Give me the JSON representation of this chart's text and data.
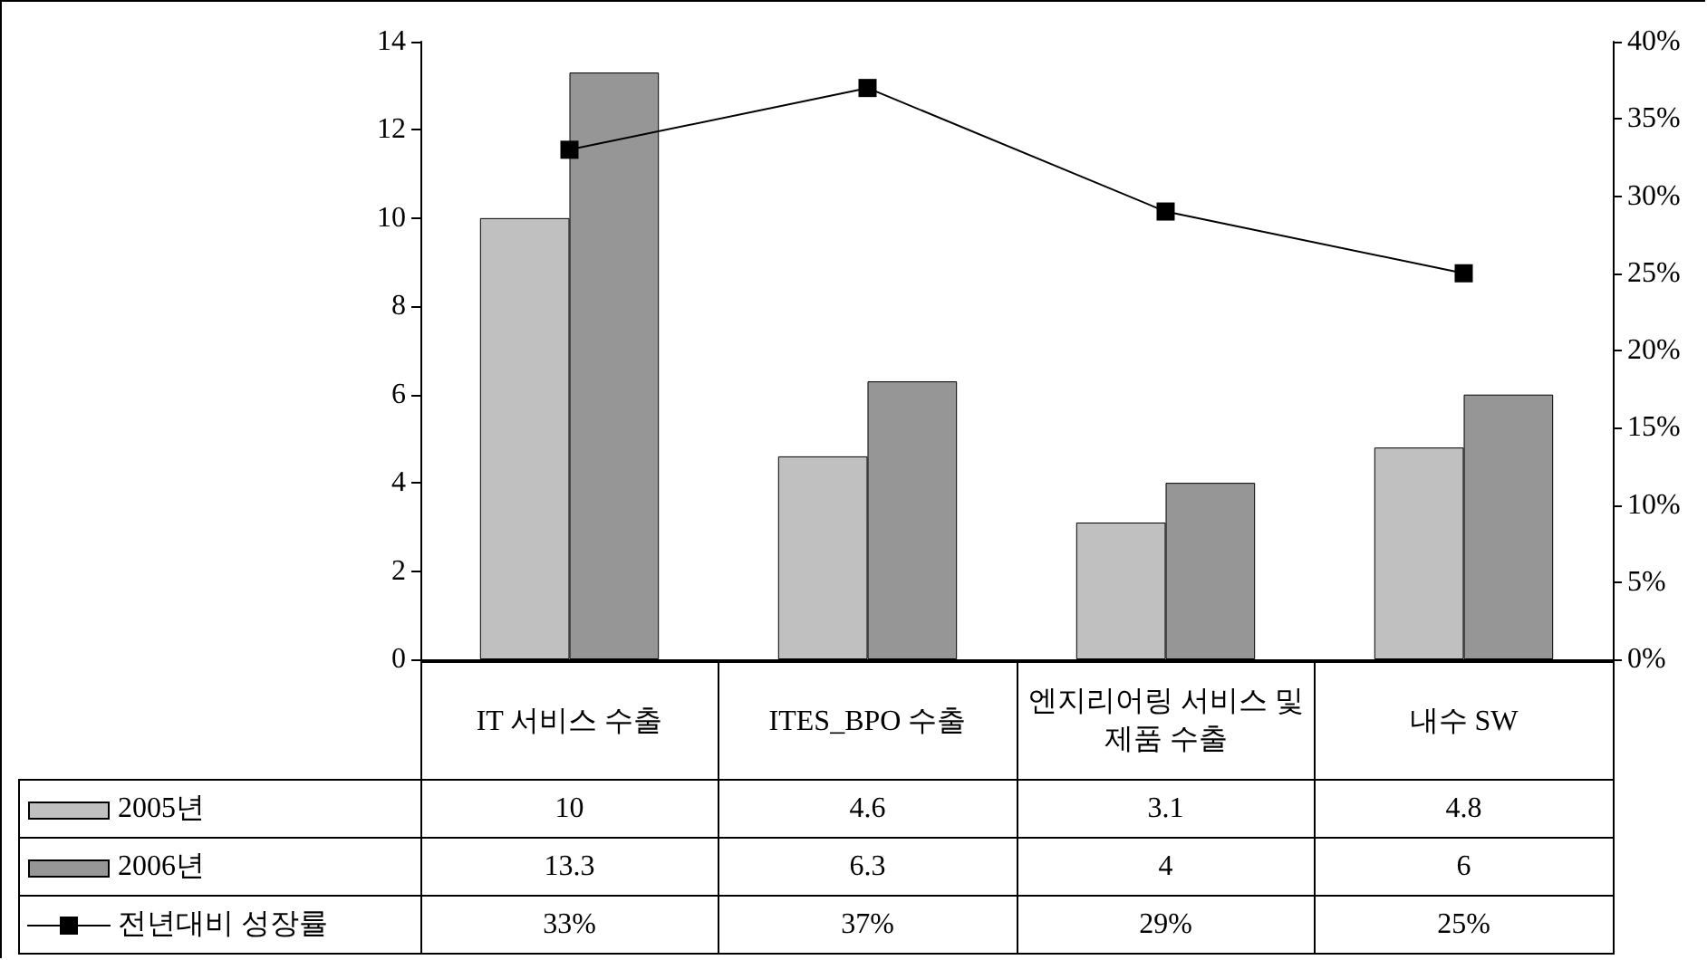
{
  "chart_data": {
    "type": "bar",
    "categories": [
      "IT 서비스 수출",
      "ITES_BPO 수출",
      "엔지리어링 서비스 및 제품 수출",
      "내수 SW"
    ],
    "series": [
      {
        "name": "2005년",
        "color": "#c0c0c0",
        "values": [
          10,
          4.6,
          3.1,
          4.8
        ]
      },
      {
        "name": "2006년",
        "color": "#969696",
        "values": [
          13.3,
          6.3,
          4,
          6
        ]
      },
      {
        "name": "전년대비 성장률",
        "type": "line",
        "axis": "y2",
        "color": "#000000",
        "marker": "square",
        "values": [
          33,
          37,
          29,
          25
        ],
        "value_labels": [
          "33%",
          "37%",
          "29%",
          "25%"
        ]
      }
    ],
    "ylim": [
      0,
      14
    ],
    "yticks": [
      0,
      2,
      4,
      6,
      8,
      10,
      12,
      14
    ],
    "y2lim": [
      0,
      40
    ],
    "y2ticks": [
      {
        "value": 0,
        "label": "0%"
      },
      {
        "value": 5,
        "label": "5%"
      },
      {
        "value": 10,
        "label": "10%"
      },
      {
        "value": 15,
        "label": "15%"
      },
      {
        "value": 20,
        "label": "20%"
      },
      {
        "value": 25,
        "label": "25%"
      },
      {
        "value": 30,
        "label": "30%"
      },
      {
        "value": 35,
        "label": "35%"
      },
      {
        "value": 40,
        "label": "40%"
      }
    ],
    "grid": false,
    "legend": "bottom",
    "data_labels": true
  }
}
